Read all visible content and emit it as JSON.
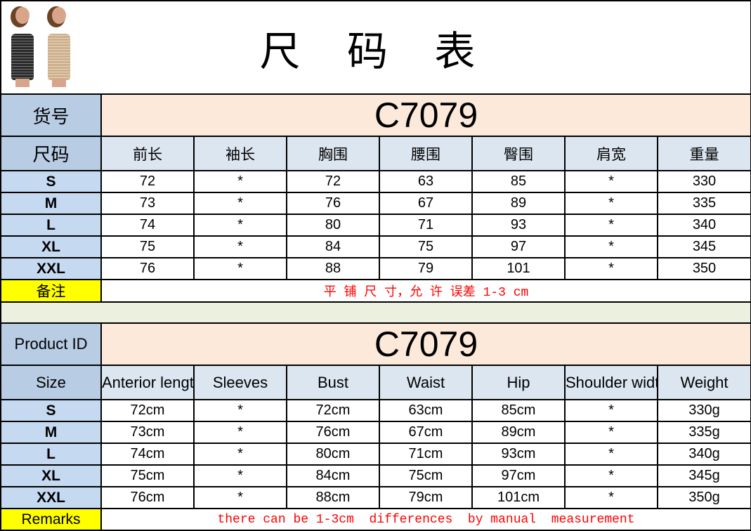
{
  "title": "尺 码 表",
  "cn": {
    "id_label": "货号",
    "id_value": "C7079",
    "size_label": "尺码",
    "headers": [
      "前长",
      "袖长",
      "胸围",
      "腰围",
      "臀围",
      "肩宽",
      "重量"
    ],
    "rows": [
      {
        "size": "S",
        "values": [
          "72",
          "*",
          "72",
          "63",
          "85",
          "*",
          "330"
        ]
      },
      {
        "size": "M",
        "values": [
          "73",
          "*",
          "76",
          "67",
          "89",
          "*",
          "335"
        ]
      },
      {
        "size": "L",
        "values": [
          "74",
          "*",
          "80",
          "71",
          "93",
          "*",
          "340"
        ]
      },
      {
        "size": "XL",
        "values": [
          "75",
          "*",
          "84",
          "75",
          "97",
          "*",
          "345"
        ]
      },
      {
        "size": "XXL",
        "values": [
          "76",
          "*",
          "88",
          "79",
          "101",
          "*",
          "350"
        ]
      }
    ],
    "note_label": "备注",
    "note": "平 铺 尺 寸，允 许 误差 1-3 cm"
  },
  "en": {
    "id_label": "Product ID",
    "id_value": "C7079",
    "size_label": "Size",
    "headers": [
      "Anterior length",
      "Sleeves",
      "Bust",
      "Waist",
      "Hip",
      "Shoulder width",
      "Weight"
    ],
    "rows": [
      {
        "size": "S",
        "values": [
          "72cm",
          "*",
          "72cm",
          "63cm",
          "85cm",
          "*",
          "330g"
        ]
      },
      {
        "size": "M",
        "values": [
          "73cm",
          "*",
          "76cm",
          "67cm",
          "89cm",
          "*",
          "335g"
        ]
      },
      {
        "size": "L",
        "values": [
          "74cm",
          "*",
          "80cm",
          "71cm",
          "93cm",
          "*",
          "340g"
        ]
      },
      {
        "size": "XL",
        "values": [
          "75cm",
          "*",
          "84cm",
          "75cm",
          "97cm",
          "*",
          "345g"
        ]
      },
      {
        "size": "XXL",
        "values": [
          "76cm",
          "*",
          "88cm",
          "79cm",
          "101cm",
          "*",
          "350g"
        ]
      }
    ],
    "note_label": "Remarks",
    "note": "there can be 1-3cm  differences  by manual  measurement"
  },
  "colors": {
    "label_bg": "#b8cce4",
    "id_bg": "#fce9da",
    "header_bg": "#dce6f1",
    "size_bg": "#c5d9f1",
    "note_label_bg": "#ffff00",
    "note_text": "#ff0000",
    "spacer_bg": "#ebf1de",
    "dress_black": "#2a2a2a",
    "dress_nude": "#cdb08e"
  }
}
